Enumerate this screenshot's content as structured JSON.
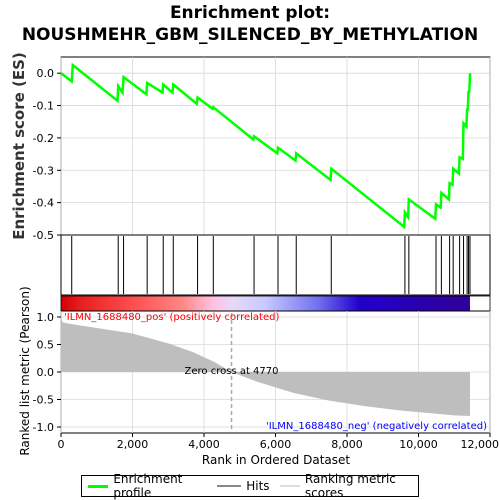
{
  "title_lines": [
    "Enrichment plot:",
    "NOUSHMEHR_GBM_SILENCED_BY_METHYLATION"
  ],
  "colors": {
    "enrichment_line": "#00ff00",
    "hit_line": "#000000",
    "metric_fill": "#bebebe",
    "pos_label": "#ff0000",
    "neg_label": "#0000ff",
    "heat_pos": "#d40000",
    "heat_neg": "#2200cc"
  },
  "legend": [
    {
      "label": "Enrichment profile",
      "color": "#00ff00",
      "icon": "line-swatch"
    },
    {
      "label": "Hits",
      "color": "#888888",
      "icon": "line-swatch"
    },
    {
      "label": "Ranking metric scores",
      "color": "#dddddd",
      "icon": "line-swatch"
    }
  ],
  "chart_data": [
    {
      "type": "line",
      "name": "enrichment-profile",
      "ylabel": "Enrichment score (ES)",
      "ylim": [
        -0.5,
        0.05
      ],
      "xlim": [
        0,
        12000
      ],
      "yticks": [
        "0.0",
        "-0.1",
        "-0.2",
        "-0.3",
        "-0.4",
        "-0.5"
      ],
      "ytick_values": [
        0.0,
        -0.1,
        -0.2,
        -0.3,
        -0.4,
        -0.5
      ],
      "points": [
        [
          0,
          0.0
        ],
        [
          300,
          -0.025
        ],
        [
          330,
          0.025
        ],
        [
          1580,
          -0.085
        ],
        [
          1600,
          -0.04
        ],
        [
          1720,
          -0.06
        ],
        [
          1750,
          -0.012
        ],
        [
          2390,
          -0.065
        ],
        [
          2410,
          -0.03
        ],
        [
          2840,
          -0.06
        ],
        [
          2860,
          -0.035
        ],
        [
          3120,
          -0.06
        ],
        [
          3140,
          -0.035
        ],
        [
          3800,
          -0.095
        ],
        [
          3820,
          -0.075
        ],
        [
          4240,
          -0.11
        ],
        [
          4260,
          -0.105
        ],
        [
          5380,
          -0.205
        ],
        [
          5400,
          -0.195
        ],
        [
          6050,
          -0.248
        ],
        [
          6070,
          -0.23
        ],
        [
          6560,
          -0.27
        ],
        [
          6580,
          -0.248
        ],
        [
          7540,
          -0.33
        ],
        [
          7560,
          -0.295
        ],
        [
          9600,
          -0.475
        ],
        [
          9620,
          -0.43
        ],
        [
          9710,
          -0.445
        ],
        [
          9730,
          -0.39
        ],
        [
          10470,
          -0.45
        ],
        [
          10490,
          -0.405
        ],
        [
          10620,
          -0.415
        ],
        [
          10640,
          -0.37
        ],
        [
          10850,
          -0.39
        ],
        [
          10870,
          -0.34
        ],
        [
          10950,
          -0.345
        ],
        [
          10970,
          -0.295
        ],
        [
          11130,
          -0.31
        ],
        [
          11150,
          -0.26
        ],
        [
          11240,
          -0.265
        ],
        [
          11260,
          -0.155
        ],
        [
          11340,
          -0.165
        ],
        [
          11360,
          -0.11
        ],
        [
          11380,
          -0.115
        ],
        [
          11400,
          -0.055
        ],
        [
          11420,
          -0.06
        ],
        [
          11440,
          0.0
        ]
      ]
    },
    {
      "type": "hits",
      "name": "hits",
      "x": [
        300,
        1600,
        1750,
        2410,
        2860,
        3140,
        3820,
        4260,
        5400,
        6070,
        6580,
        7560,
        9620,
        9730,
        10490,
        10640,
        10870,
        10970,
        11150,
        11260,
        11360,
        11400,
        11440
      ]
    },
    {
      "type": "area",
      "name": "ranking-metric",
      "xlabel": "Rank in Ordered Dataset",
      "ylabel": "Ranked list metric (Pearson)",
      "xlim": [
        0,
        12000
      ],
      "ylim": [
        -1.0,
        1.0
      ],
      "xticks": [
        "0",
        "2,000",
        "4,000",
        "6,000",
        "8,000",
        "10,000",
        "12,000"
      ],
      "xtick_values": [
        0,
        2000,
        4000,
        6000,
        8000,
        10000,
        12000
      ],
      "yticks": [
        "1.0",
        "0.5",
        "0.0",
        "-0.5",
        "-1.0"
      ],
      "ytick_values": [
        1.0,
        0.5,
        0.0,
        -0.5,
        -1.0
      ],
      "points": [
        [
          0,
          0.97
        ],
        [
          50,
          0.9
        ],
        [
          300,
          0.87
        ],
        [
          1000,
          0.8
        ],
        [
          2000,
          0.7
        ],
        [
          3000,
          0.52
        ],
        [
          3700,
          0.36
        ],
        [
          4300,
          0.18
        ],
        [
          4770,
          0.0
        ],
        [
          5500,
          -0.18
        ],
        [
          6500,
          -0.38
        ],
        [
          7500,
          -0.52
        ],
        [
          8500,
          -0.62
        ],
        [
          9500,
          -0.7
        ],
        [
          10500,
          -0.76
        ],
        [
          11000,
          -0.79
        ],
        [
          11440,
          -0.8
        ]
      ],
      "zero_cross_label": "Zero cross at 4770",
      "zero_cross_x": 4770,
      "pos_label": "'ILMN_1688480_pos' (positively correlated)",
      "neg_label": "'ILMN_1688480_neg' (negatively correlated)"
    }
  ]
}
